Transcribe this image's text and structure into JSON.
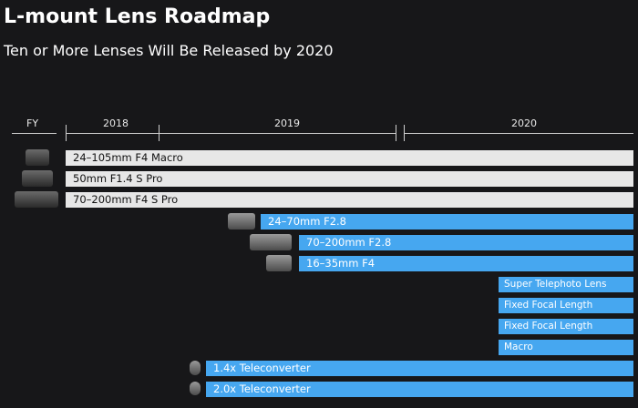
{
  "header": {
    "title": "L-mount Lens Roadmap",
    "subtitle": "Ten or More Lenses Will Be Released by 2020"
  },
  "timeline": {
    "fy_label": "FY",
    "years": [
      "2018",
      "2019",
      "2020"
    ]
  },
  "lenses": [
    {
      "label": "24–105mm F4 Macro",
      "style": "released"
    },
    {
      "label": "50mm F1.4 S Pro",
      "style": "released"
    },
    {
      "label": "70–200mm F4 S Pro",
      "style": "released"
    },
    {
      "label": "24–70mm F2.8",
      "style": "planned"
    },
    {
      "label": "70–200mm F2.8",
      "style": "planned"
    },
    {
      "label": "16–35mm F4",
      "style": "planned"
    },
    {
      "label": "Super Telephoto Lens",
      "style": "planned"
    },
    {
      "label": "Fixed Focal Length",
      "style": "planned"
    },
    {
      "label": "Fixed Focal Length",
      "style": "planned"
    },
    {
      "label": "Macro",
      "style": "planned"
    },
    {
      "label": "1.4x Teleconverter",
      "style": "planned"
    },
    {
      "label": "2.0x Teleconverter",
      "style": "planned"
    }
  ],
  "colors": {
    "released_bar": "#e7e7e7",
    "planned_bar": "#46a7f0",
    "background": "#171719"
  }
}
